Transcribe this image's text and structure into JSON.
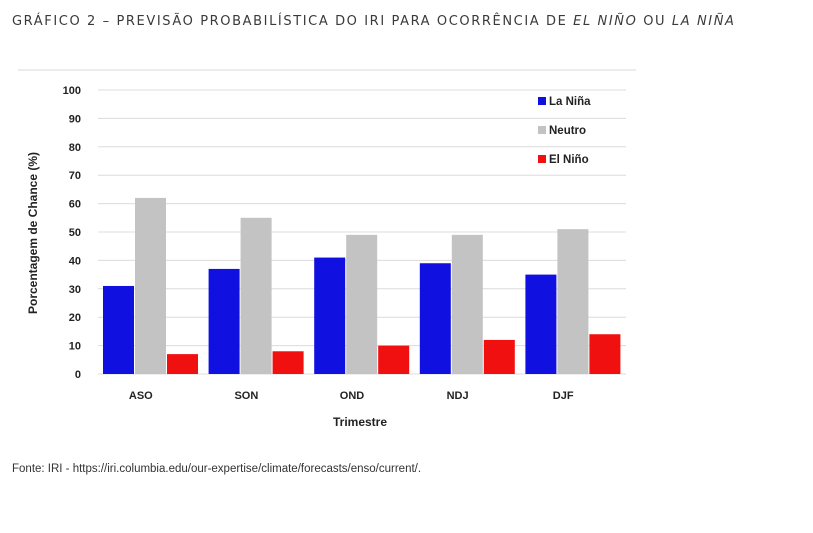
{
  "title": {
    "prefix": "GRÁFICO 2 – PREVISÃO PROBABILÍSTICA DO IRI PARA OCORRÊNCIA DE ",
    "el_nino": "EL NIÑO",
    "mid": " OU ",
    "la_nina": "LA NIÑA"
  },
  "source": "Fonte: IRI - https://iri.columbia.edu/our-expertise/climate/forecasts/enso/current/.",
  "chart_data": {
    "type": "bar",
    "categories": [
      "ASO",
      "SON",
      "OND",
      "NDJ",
      "DJF"
    ],
    "series": [
      {
        "name": "La Niña",
        "color": "#1010e0",
        "values": [
          31,
          37,
          41,
          39,
          35
        ]
      },
      {
        "name": "Neutro",
        "color": "#c3c3c3",
        "values": [
          62,
          55,
          49,
          49,
          51
        ]
      },
      {
        "name": "El Niño",
        "color": "#f01010",
        "values": [
          7,
          8,
          10,
          12,
          14
        ]
      }
    ],
    "xlabel": "Trimestre",
    "ylabel": "Porcentagem de Chance (%)",
    "ylim": [
      0,
      100
    ],
    "yticks": [
      0,
      10,
      20,
      30,
      40,
      50,
      60,
      70,
      80,
      90,
      100
    ],
    "grid": true,
    "legend": "top-right"
  }
}
